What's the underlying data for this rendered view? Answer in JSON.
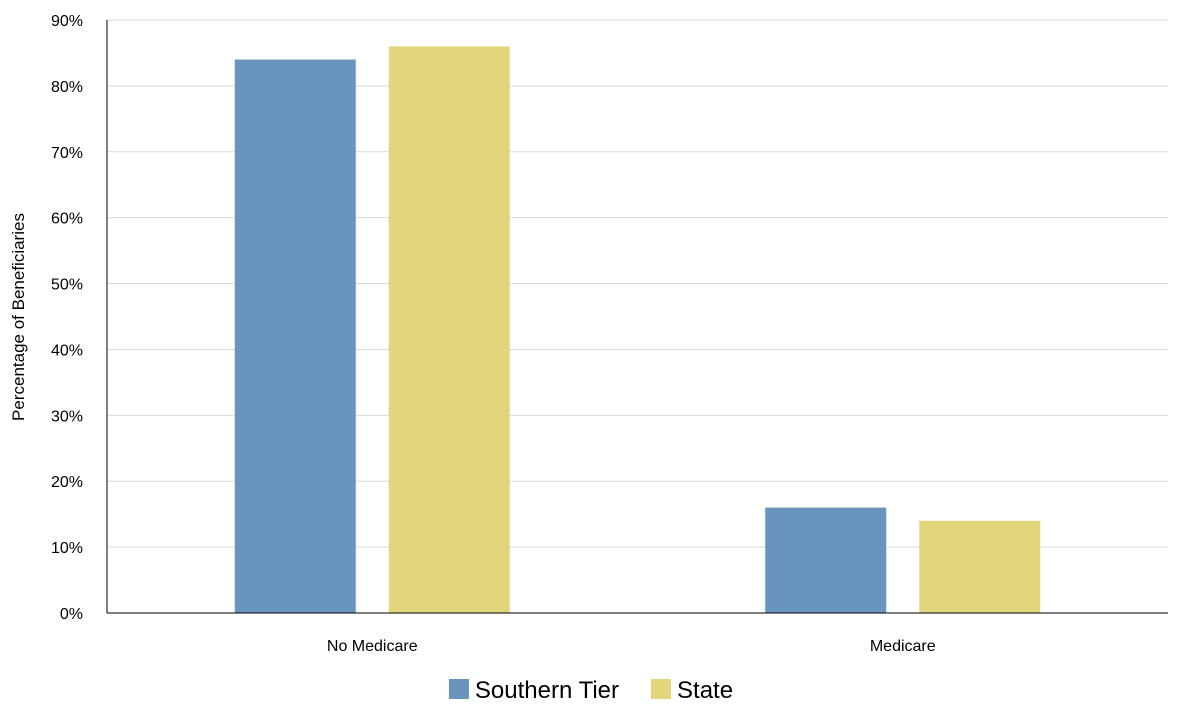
{
  "chart_data": {
    "type": "bar",
    "title": "",
    "xlabel": "",
    "ylabel": "Percentage of Beneficiaries",
    "categories": [
      "No Medicare",
      "Medicare"
    ],
    "series": [
      {
        "name": "Southern Tier",
        "values": [
          84,
          16
        ],
        "color": "#6894bd"
      },
      {
        "name": "State",
        "values": [
          86,
          14
        ],
        "color": "#e2d57c"
      }
    ],
    "ylim": [
      0,
      90
    ],
    "yticks": [
      0,
      10,
      20,
      30,
      40,
      50,
      60,
      70,
      80,
      90
    ],
    "ytick_format": "%",
    "grid": true,
    "legend_position": "bottom-center"
  }
}
